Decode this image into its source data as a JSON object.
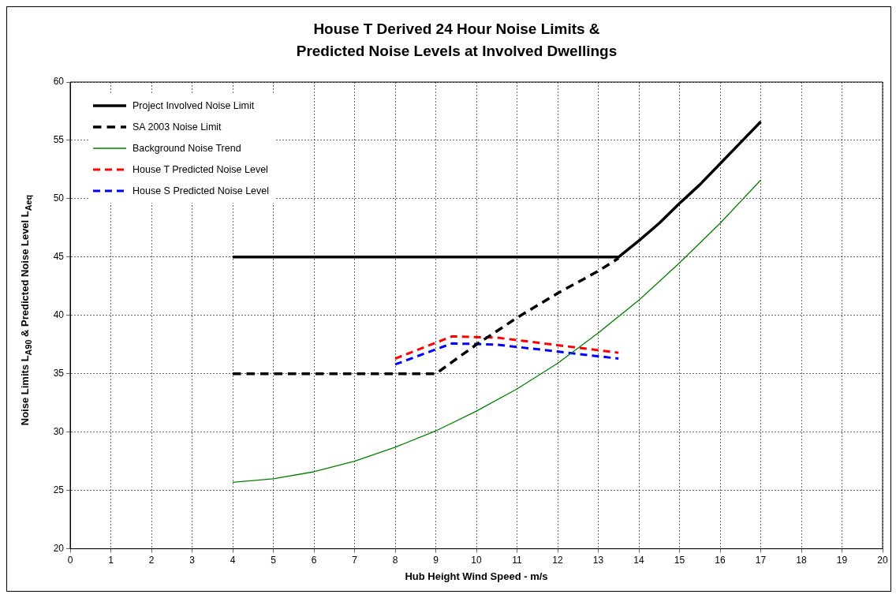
{
  "chart_data": {
    "type": "line",
    "title": "House T Derived 24 Hour Noise Limits & Predicted Noise Levels at Involved Dwellings",
    "xlabel": "Hub Height Wind Speed - m/s",
    "ylabel": "Noise Limits L$_{A90}$ & Predicted Noise Level L$_{Aeq}$",
    "xlim": [
      0,
      20
    ],
    "xticks": [
      0,
      1,
      2,
      3,
      4,
      5,
      6,
      7,
      8,
      9,
      10,
      11,
      12,
      13,
      14,
      15,
      16,
      17,
      18,
      19,
      20
    ],
    "ylim": [
      20,
      60
    ],
    "yticks": [
      20,
      25,
      30,
      35,
      40,
      45,
      50,
      55,
      60
    ],
    "grid": true,
    "legend": "top left",
    "marker": "none",
    "series": [
      {
        "name": "Project Involved Noise Limit",
        "color": "#000000",
        "line_style": "solid",
        "x": [
          4,
          13.5,
          14,
          14.5,
          15,
          15.5,
          16,
          16.5,
          17
        ],
        "values": [
          45,
          45,
          46.4,
          47.9,
          49.6,
          51.2,
          53,
          54.8,
          56.6
        ]
      },
      {
        "name": "SA 2003 Noise Limit",
        "color": "#000000",
        "line_style": "dashed",
        "x": [
          4,
          9,
          10,
          11,
          12,
          13,
          13.5
        ],
        "values": [
          35,
          35,
          37.5,
          39.8,
          41.9,
          43.8,
          44.9
        ]
      },
      {
        "name": "Background Noise Trend",
        "color": "#008000",
        "line_style": "solid",
        "x": [
          4,
          5,
          6,
          7,
          8,
          9,
          10,
          11,
          12,
          13,
          14,
          15,
          16,
          17
        ],
        "values": [
          25.7,
          26,
          26.6,
          27.5,
          28.7,
          30.1,
          31.8,
          33.7,
          35.9,
          38.5,
          41.3,
          44.5,
          47.9,
          51.6
        ]
      },
      {
        "name": "House T Predicted Noise Level",
        "color": "#ff0000",
        "line_style": "dashed",
        "x": [
          8,
          9.4,
          10.5,
          13.5
        ],
        "values": [
          36.3,
          38.2,
          38.1,
          36.8
        ]
      },
      {
        "name": "House S Predicted Noise Level",
        "color": "#0000ff",
        "line_style": "dashed",
        "x": [
          8,
          9.4,
          10.5,
          13.5
        ],
        "values": [
          35.8,
          37.6,
          37.5,
          36.3
        ]
      }
    ]
  }
}
